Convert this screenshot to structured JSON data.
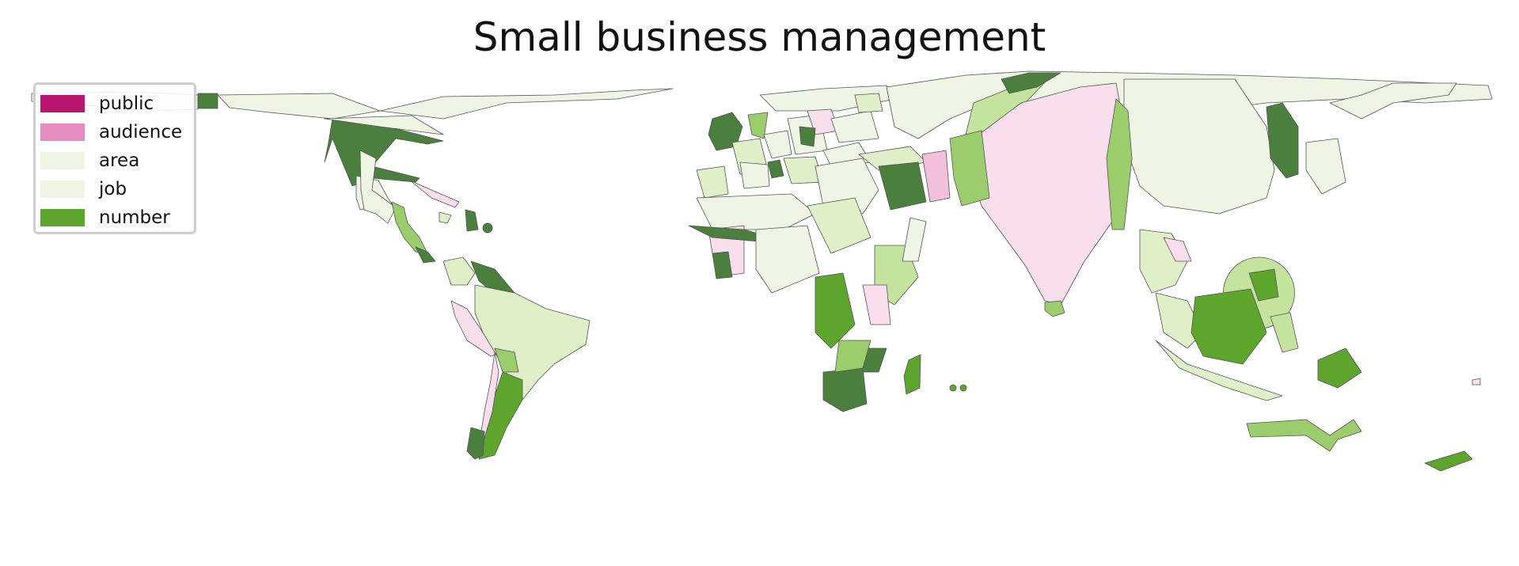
{
  "title": "Small business management",
  "legend": {
    "items": [
      {
        "label": "public",
        "color": "#b8166f"
      },
      {
        "label": "audience",
        "color": "#e58cc0"
      },
      {
        "label": "area",
        "color": "#eef5e4"
      },
      {
        "label": "job",
        "color": "#eef5e4"
      },
      {
        "label": "number",
        "color": "#5ea52e"
      }
    ]
  },
  "palette": {
    "public": "#b8166f",
    "audience": "#e58cc0",
    "pale_pink": "#f9dfee",
    "pink_mid": "#f2c0dc",
    "area": "#eef5e4",
    "light_green": "#dff0c8",
    "mid_green": "#c3e39f",
    "green": "#9ccd6c",
    "number": "#5ea52e",
    "dark_green": "#4a7f3e",
    "stroke": "#555555"
  }
}
